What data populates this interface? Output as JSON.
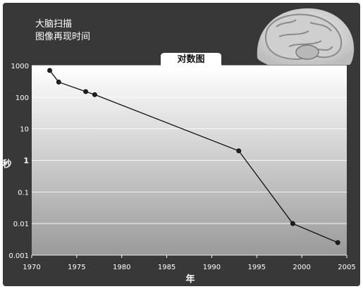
{
  "header": {
    "title_line1": "大脑扫描",
    "title_line2": "图像再现时间"
  },
  "tab": {
    "label": "对数图"
  },
  "icons": {
    "brain": "brain-head-illustration-icon"
  },
  "colors": {
    "background": "#383838",
    "plot_top": "#ffffff",
    "plot_bottom": "#9a9a9a",
    "line": "#111111",
    "text": "#ffffff"
  },
  "chart_data": {
    "type": "line",
    "title": "对数图",
    "xlabel": "年",
    "ylabel": "秒",
    "yscale": "log",
    "xlim": [
      1970,
      2005
    ],
    "ylim": [
      0.001,
      1000
    ],
    "x_ticks": [
      "1970",
      "1975",
      "1980",
      "1985",
      "1990",
      "1995",
      "2000",
      "2005"
    ],
    "y_ticks": [
      "0.001",
      "0.01",
      "0.1",
      "1",
      "10",
      "100",
      "1000"
    ],
    "grid": true,
    "series": [
      {
        "x": [
          1972,
          1973,
          1976,
          1977,
          1993,
          1999,
          2004
        ],
        "y": [
          700,
          300,
          150,
          120,
          2,
          0.01,
          0.0025
        ]
      }
    ]
  }
}
